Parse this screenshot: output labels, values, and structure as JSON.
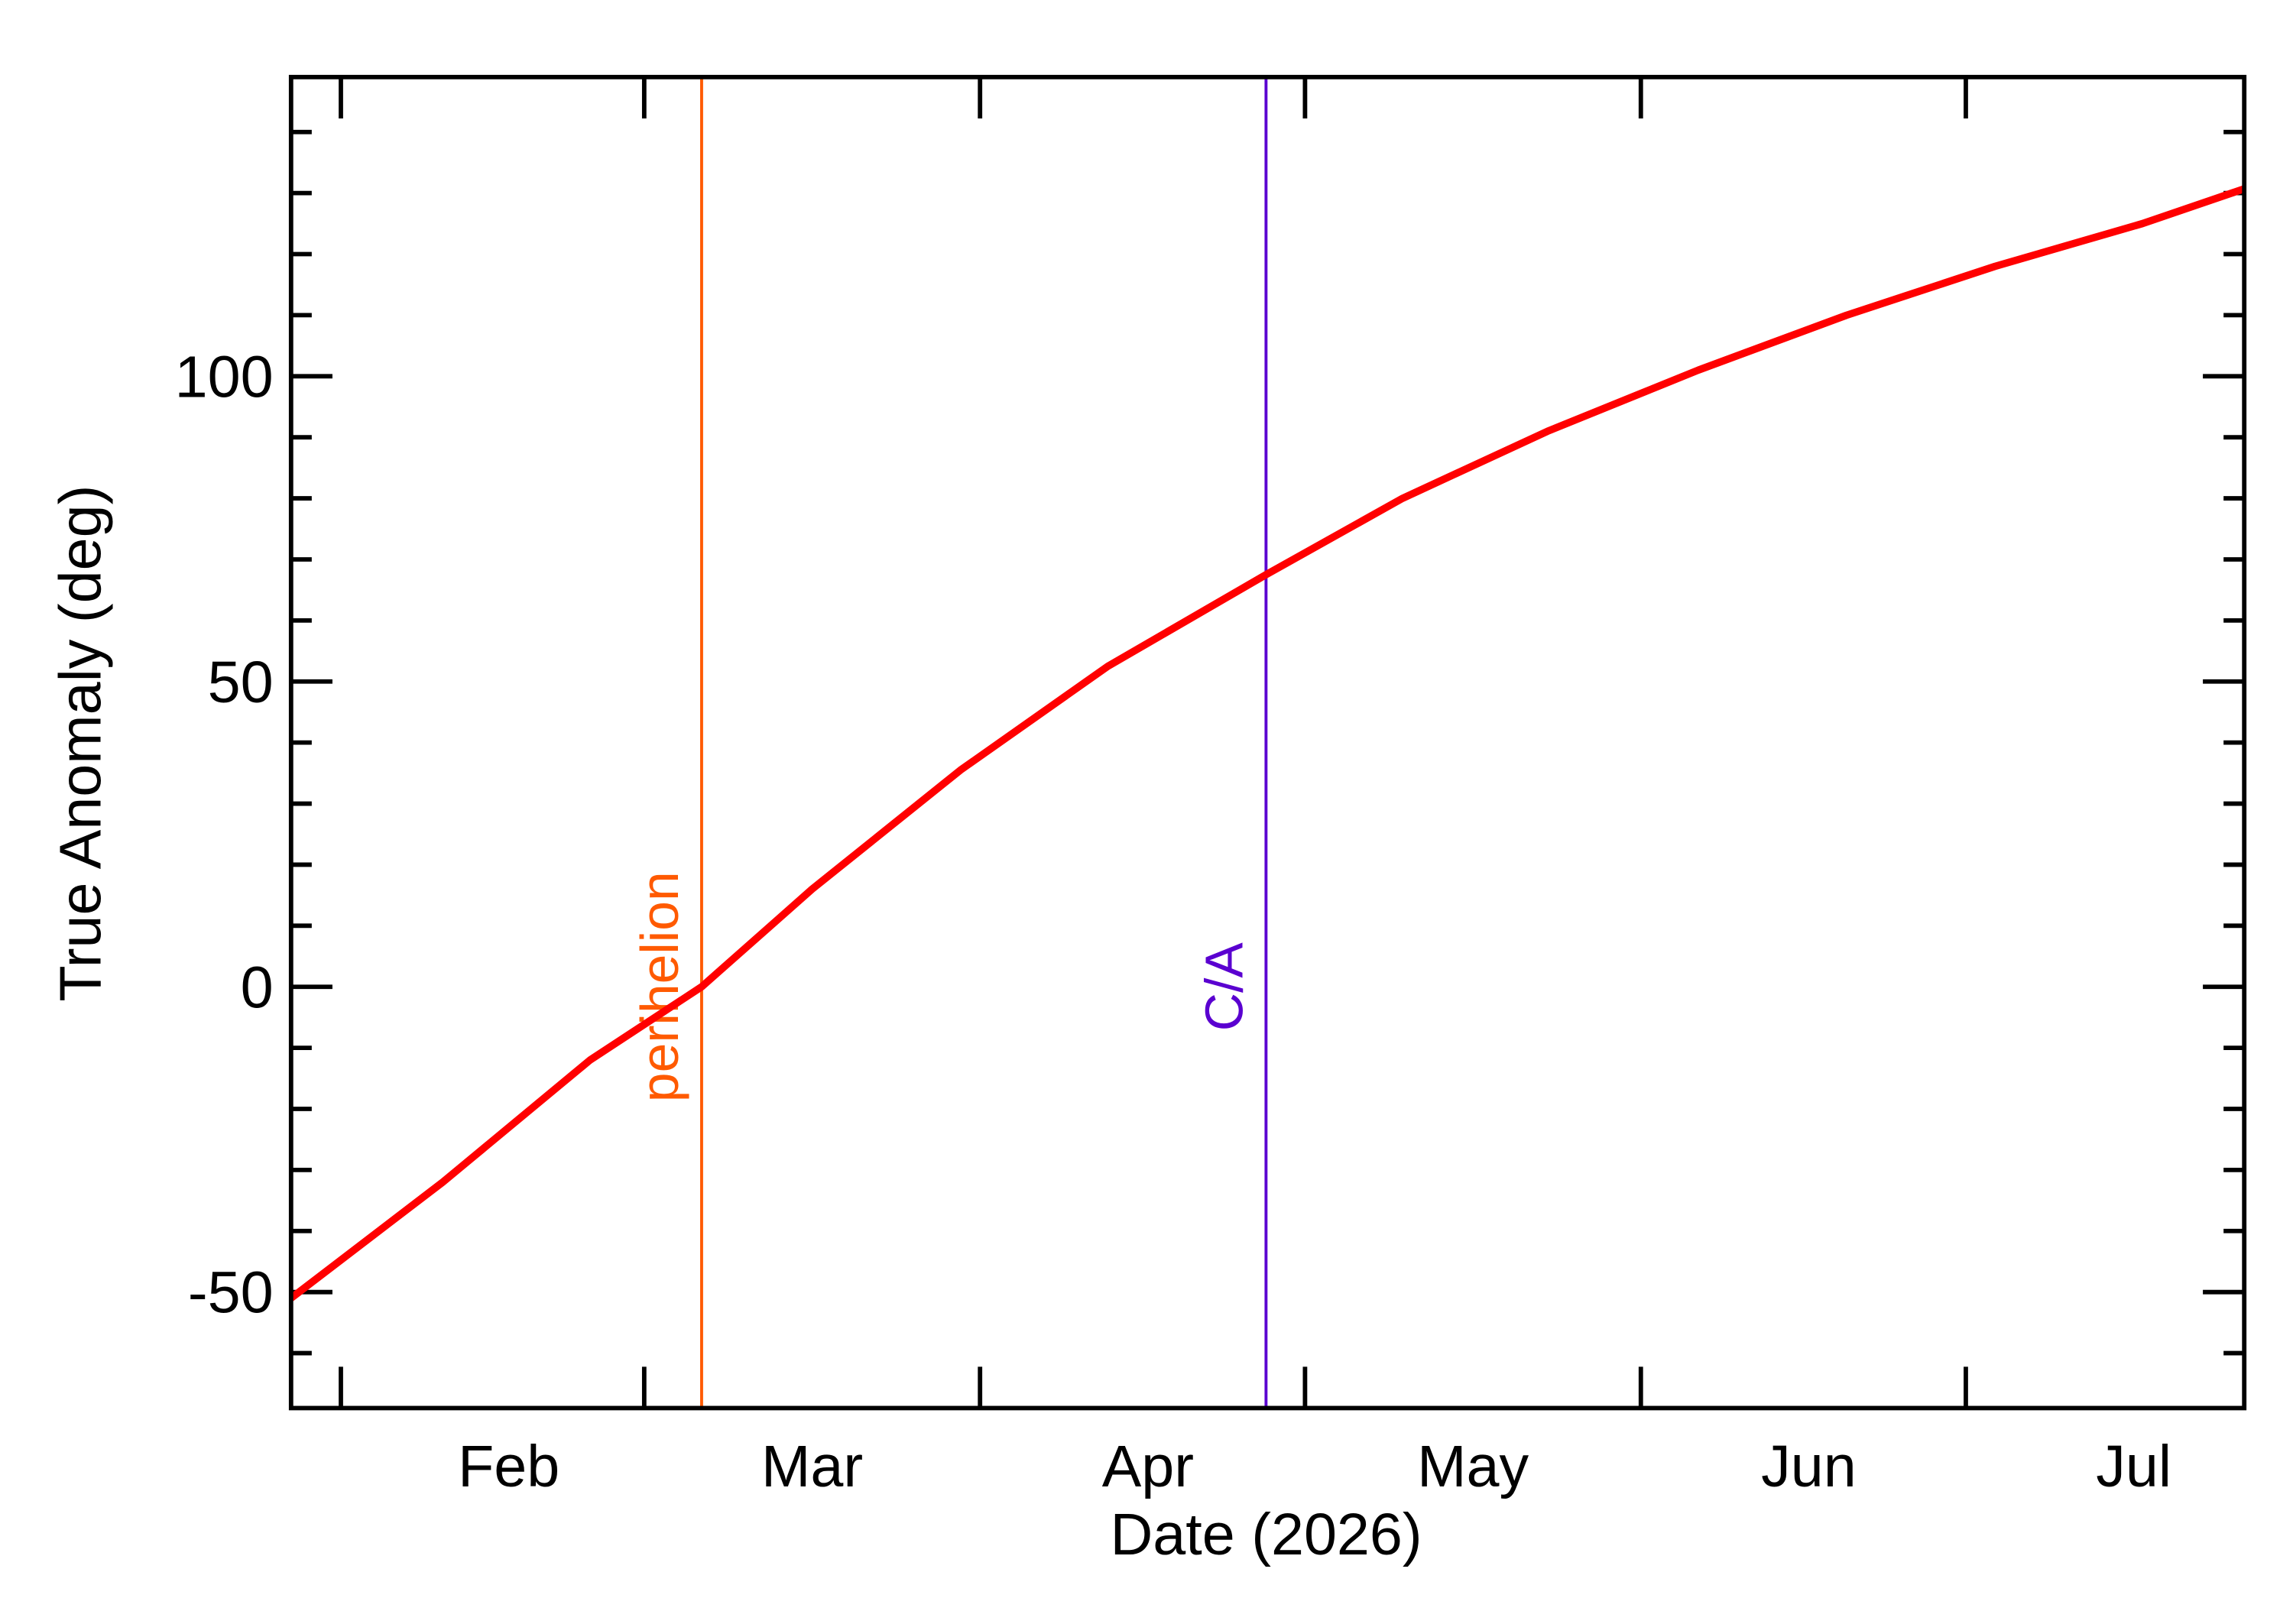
{
  "chart_data": {
    "type": "line",
    "xlabel": "Date (2026)",
    "ylabel": "True Anomaly (deg)",
    "x": [
      27.4,
      41.4,
      55,
      65.3,
      75.5,
      89.2,
      102.8,
      117.4,
      130,
      143.4,
      157.3,
      171,
      184.7,
      198.3,
      207.7
    ],
    "series": [
      {
        "color": "#ff0000",
        "values": [
          -51,
          -32,
          -12,
          0,
          16,
          35.5,
          52.5,
          67.5,
          80,
          91,
          101,
          110,
          118,
          125,
          130.7
        ]
      }
    ],
    "xlim": [
      27.4,
      207.7
    ],
    "xticks": [
      {
        "value": 32,
        "label": "Feb"
      },
      {
        "value": 60,
        "label": "Mar"
      },
      {
        "value": 91,
        "label": "Apr"
      },
      {
        "value": 121,
        "label": "May"
      },
      {
        "value": 152,
        "label": "Jun"
      },
      {
        "value": 182,
        "label": "Jul"
      }
    ],
    "ylim": [
      -69,
      149
    ],
    "yticks": [
      -50,
      0,
      50,
      100
    ],
    "yminorticks": [
      -60,
      -40,
      -30,
      -20,
      -10,
      10,
      20,
      30,
      40,
      60,
      70,
      80,
      90,
      110,
      120,
      130,
      140
    ],
    "vlines": [
      {
        "label": "perihelion",
        "x": 65.3,
        "color": "#ff5a00"
      },
      {
        "label": "C/A",
        "x": 117.4,
        "color": "#5a00d0"
      }
    ]
  }
}
